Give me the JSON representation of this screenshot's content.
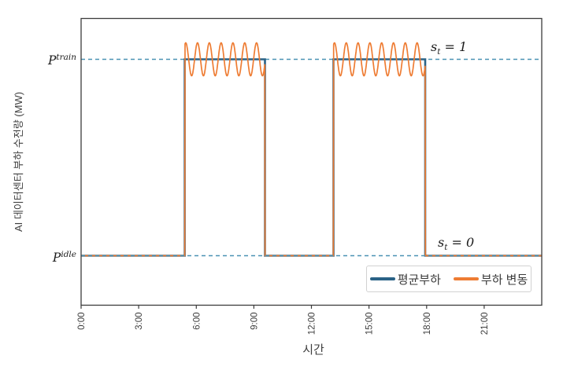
{
  "chart_data": {
    "type": "line",
    "title": "",
    "xlabel": "시간",
    "ylabel": "AI 데이터센터 부하 수전량 (MW)",
    "x_unit": "hour-of-day",
    "xlim_hours": [
      0,
      24
    ],
    "ylim": [
      -0.252,
      1.208
    ],
    "grid": "off",
    "x_ticks": [
      {
        "hour": 0,
        "label": "0:00"
      },
      {
        "hour": 3,
        "label": "3:00"
      },
      {
        "hour": 6,
        "label": "6:00"
      },
      {
        "hour": 9,
        "label": "9:00"
      },
      {
        "hour": 12,
        "label": "12:00"
      },
      {
        "hour": 15,
        "label": "15:00"
      },
      {
        "hour": 18,
        "label": "18:00"
      },
      {
        "hour": 21,
        "label": "21:00"
      }
    ],
    "levels": {
      "p_idle": 0,
      "p_train": 1
    },
    "train_periods_hours": [
      [
        5.4,
        9.58
      ],
      [
        13.15,
        17.93
      ]
    ],
    "oscillation": {
      "amplitude": 0.084,
      "period_hours": 0.615,
      "phase_rad": 1.05
    },
    "series": [
      {
        "name": "평균부하",
        "color": "#2a6286",
        "width": 2.6,
        "kind": "step"
      },
      {
        "name": "부하 변동",
        "color": "#ee7c33",
        "width": 1.7,
        "kind": "sine-on-train"
      }
    ],
    "ref_lines": [
      {
        "value": 1,
        "color": "#4a92b4",
        "dash": "5 4",
        "label_base": "P",
        "label_sup": "train"
      },
      {
        "value": 0,
        "color": "#4a92b4",
        "dash": "5 4",
        "label_base": "P",
        "label_sup": "idle"
      }
    ],
    "annotations": [
      {
        "id": "state-on",
        "base": "s",
        "sub": "t",
        "rhs": " = 1",
        "x_hour": 18.2,
        "y_value": 1.06
      },
      {
        "id": "state-off",
        "base": "s",
        "sub": "t",
        "rhs": " = 0",
        "x_hour": 18.6,
        "y_value": 0.07
      }
    ],
    "legend": {
      "position": "lower right",
      "items": [
        "평균부하",
        "부하 변동"
      ]
    },
    "spine_color": "#3c3c3c",
    "tick_color": "#3f3f3f",
    "background": "#ffffff"
  }
}
